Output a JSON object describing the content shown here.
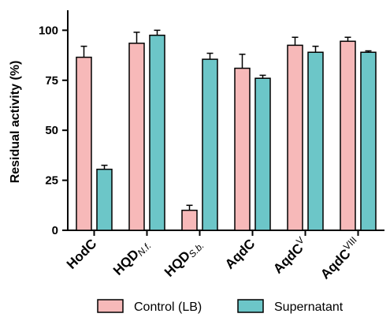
{
  "chart_data": {
    "type": "bar",
    "title": "",
    "xlabel": "",
    "ylabel": "Residual activity (%)",
    "ylim": [
      0,
      110
    ],
    "yticks": [
      "0",
      "25",
      "50",
      "75",
      "100"
    ],
    "grid": false,
    "legend_position": "bottom",
    "categories": [
      {
        "main": "HodC",
        "sub": ""
      },
      {
        "main": "HQD",
        "sub": "N.f."
      },
      {
        "main": "HQD",
        "sub": "S.b."
      },
      {
        "main": "AqdC",
        "sub": ""
      },
      {
        "main": "AqdC",
        "sub": "V",
        "sub_style": "superscript"
      },
      {
        "main": "AqdC",
        "sub": "VIII",
        "sub_style": "superscript"
      }
    ],
    "series": [
      {
        "name": "Control (LB)",
        "color": "#f7b9b9",
        "values": [
          86.5,
          93.5,
          10,
          81,
          92.5,
          94.5
        ],
        "errors": [
          5.5,
          5.5,
          2.5,
          7,
          4,
          2
        ]
      },
      {
        "name": "Supernatant",
        "color": "#6cc6c8",
        "values": [
          30.5,
          97.5,
          85.5,
          76,
          89,
          89
        ],
        "errors": [
          2,
          2.5,
          3,
          1.5,
          3,
          0.7
        ]
      }
    ]
  }
}
